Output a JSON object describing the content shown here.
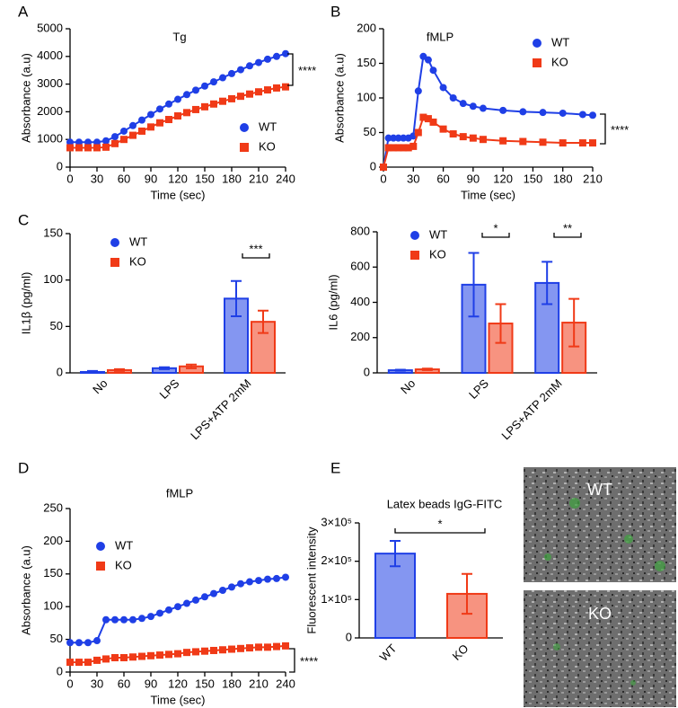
{
  "panel_labels": [
    "A",
    "B",
    "C",
    "D",
    "E"
  ],
  "micrographs": [
    "WT",
    "KO"
  ],
  "chart_data": [
    {
      "type": "line",
      "title": "Tg",
      "xlabel": "Time (sec)",
      "ylabel": "Absorbance (a.u)",
      "x": [
        0,
        10,
        20,
        30,
        40,
        50,
        60,
        70,
        80,
        90,
        100,
        110,
        120,
        130,
        140,
        150,
        160,
        170,
        180,
        190,
        200,
        210,
        220,
        230,
        240
      ],
      "series": [
        {
          "name": "WT",
          "color": "#1f3fe6",
          "marker": "circle",
          "values": [
            900,
            900,
            900,
            900,
            950,
            1100,
            1300,
            1500,
            1700,
            1900,
            2100,
            2280,
            2450,
            2620,
            2780,
            2930,
            3080,
            3230,
            3380,
            3520,
            3660,
            3780,
            3900,
            4000,
            4100
          ]
        },
        {
          "name": "KO",
          "color": "#f03a17",
          "marker": "square",
          "values": [
            700,
            700,
            700,
            700,
            720,
            850,
            1000,
            1150,
            1300,
            1450,
            1600,
            1720,
            1850,
            1970,
            2080,
            2180,
            2280,
            2380,
            2470,
            2560,
            2640,
            2720,
            2790,
            2860,
            2900
          ]
        }
      ],
      "xlim": [
        0,
        240
      ],
      "xticks": [
        0,
        30,
        60,
        90,
        120,
        150,
        180,
        210,
        240
      ],
      "ylim": [
        0,
        5000
      ],
      "yticks": [
        0,
        1000,
        2000,
        3000,
        4000,
        5000
      ],
      "annotations": [
        "****"
      ]
    },
    {
      "type": "line",
      "title": "fMLP",
      "xlabel": "Time (sec)",
      "ylabel": "Absorbance (a.u)",
      "x": [
        0,
        5,
        10,
        15,
        20,
        25,
        30,
        35,
        40,
        45,
        50,
        60,
        70,
        80,
        90,
        100,
        120,
        140,
        160,
        180,
        200,
        210
      ],
      "series": [
        {
          "name": "WT",
          "color": "#1f3fe6",
          "marker": "circle",
          "values": [
            0,
            42,
            42,
            42,
            42,
            42,
            45,
            110,
            160,
            155,
            140,
            115,
            100,
            92,
            88,
            85,
            82,
            80,
            79,
            78,
            76,
            75
          ]
        },
        {
          "name": "KO",
          "color": "#f03a17",
          "marker": "square",
          "values": [
            0,
            28,
            28,
            28,
            28,
            28,
            30,
            50,
            72,
            70,
            65,
            55,
            48,
            44,
            42,
            40,
            38,
            37,
            36,
            35,
            35,
            35
          ]
        }
      ],
      "xlim": [
        0,
        210
      ],
      "xticks": [
        0,
        30,
        60,
        90,
        120,
        150,
        180,
        210
      ],
      "ylim": [
        0,
        200
      ],
      "yticks": [
        0,
        50,
        100,
        150,
        200
      ],
      "annotations": [
        "****"
      ]
    },
    {
      "type": "bar",
      "ylabel": "IL1β (pg/ml)",
      "categories": [
        "No",
        "LPS",
        "LPS+ATP 2mM"
      ],
      "series": [
        {
          "name": "WT",
          "color": "#1f3fe6",
          "marker": "circle",
          "values": [
            1,
            5,
            80
          ],
          "errors": [
            1,
            1,
            19
          ]
        },
        {
          "name": "KO",
          "color": "#f03a17",
          "marker": "square",
          "values": [
            3,
            7,
            55
          ],
          "errors": [
            1,
            2,
            12
          ]
        }
      ],
      "ylim": [
        0,
        150
      ],
      "yticks": [
        0,
        50,
        100,
        150
      ],
      "annotations": [
        "***"
      ]
    },
    {
      "type": "bar",
      "ylabel": "IL6 (pg/ml)",
      "categories": [
        "No",
        "LPS",
        "LPS+ATP 2mM"
      ],
      "series": [
        {
          "name": "WT",
          "color": "#1f3fe6",
          "marker": "circle",
          "values": [
            15,
            500,
            510
          ],
          "errors": [
            3,
            180,
            120
          ]
        },
        {
          "name": "KO",
          "color": "#f03a17",
          "marker": "square",
          "values": [
            20,
            280,
            285
          ],
          "errors": [
            4,
            110,
            135
          ]
        }
      ],
      "ylim": [
        0,
        800
      ],
      "yticks": [
        0,
        200,
        400,
        600,
        800
      ],
      "annotations": [
        "*",
        "**"
      ]
    },
    {
      "type": "line",
      "title": "fMLP",
      "xlabel": "Time (sec)",
      "ylabel": "Absorbance (a.u)",
      "x": [
        0,
        10,
        20,
        30,
        40,
        50,
        60,
        70,
        80,
        90,
        100,
        110,
        120,
        130,
        140,
        150,
        160,
        170,
        180,
        190,
        200,
        210,
        220,
        230,
        240
      ],
      "series": [
        {
          "name": "WT",
          "color": "#1f3fe6",
          "marker": "circle",
          "values": [
            45,
            45,
            45,
            48,
            80,
            80,
            80,
            80,
            82,
            85,
            90,
            95,
            100,
            105,
            110,
            115,
            120,
            125,
            130,
            135,
            138,
            140,
            142,
            143,
            145
          ]
        },
        {
          "name": "KO",
          "color": "#f03a17",
          "marker": "square",
          "values": [
            15,
            15,
            15,
            18,
            20,
            22,
            22,
            23,
            24,
            25,
            26,
            27,
            28,
            30,
            31,
            32,
            33,
            34,
            35,
            36,
            37,
            38,
            38,
            39,
            40
          ]
        }
      ],
      "xlim": [
        0,
        240
      ],
      "xticks": [
        0,
        30,
        60,
        90,
        120,
        150,
        180,
        210,
        240
      ],
      "ylim": [
        0,
        250
      ],
      "yticks": [
        0,
        50,
        100,
        150,
        200,
        250
      ],
      "annotations": [
        "****"
      ]
    },
    {
      "type": "bar",
      "title": "Latex beads IgG-FITC",
      "ylabel": "Fluorescent intensity",
      "categories": [
        "WT",
        "KO"
      ],
      "values": [
        220000,
        115000
      ],
      "errors": [
        33000,
        52000
      ],
      "colors": [
        "#1f3fe6",
        "#f03a17"
      ],
      "ylim": [
        0,
        300000
      ],
      "yticks": [
        0,
        {
          "value": 100000,
          "label": "1×10⁵"
        },
        {
          "value": 200000,
          "label": "2×10⁵"
        },
        {
          "value": 300000,
          "label": "3×10⁵"
        }
      ],
      "annotations": [
        "*"
      ]
    }
  ]
}
